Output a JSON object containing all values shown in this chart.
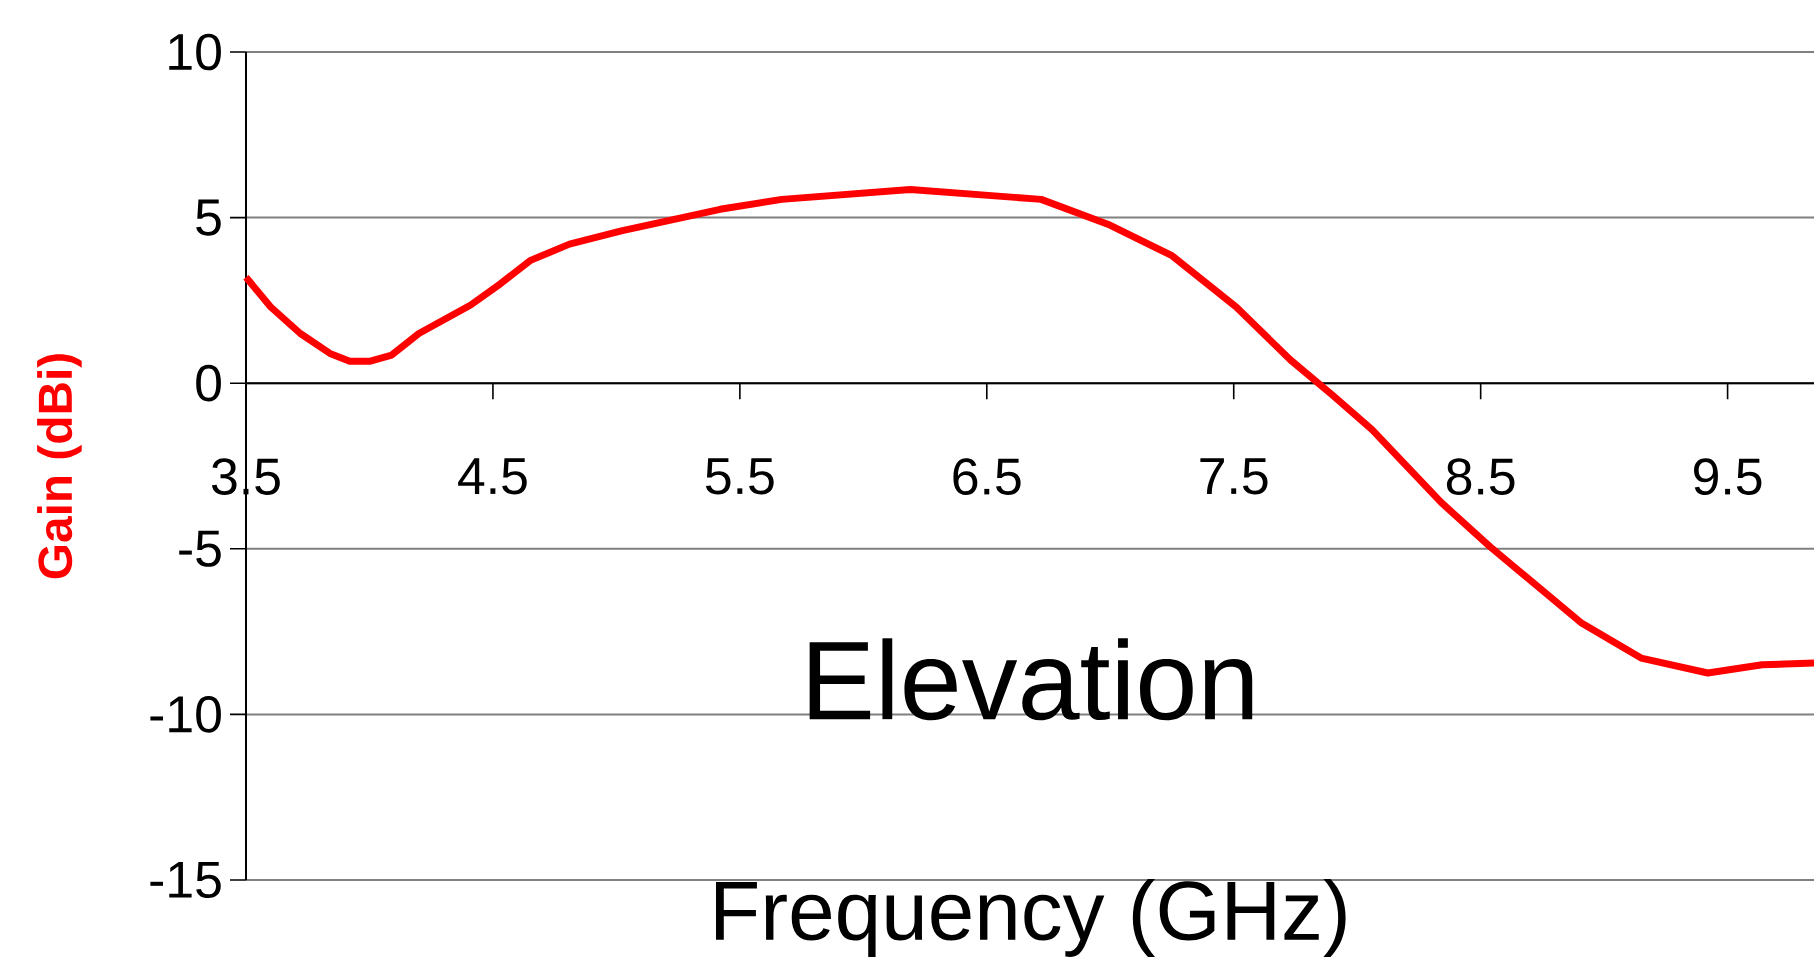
{
  "chart_data": {
    "type": "line",
    "title": "Elevation",
    "xlabel": "Frequency (GHz)",
    "ylabel": "Gain (dBi)",
    "x": [
      3.5,
      3.6,
      3.72,
      3.84,
      3.92,
      4.0,
      4.09,
      4.2,
      4.41,
      4.53,
      4.65,
      4.81,
      5.02,
      5.42,
      5.67,
      6.19,
      6.72,
      6.99,
      7.25,
      7.51,
      7.73,
      7.9,
      8.06,
      8.34,
      8.54,
      8.91,
      9.15,
      9.42,
      9.64,
      9.85
    ],
    "series": [
      {
        "color": "#ff0000",
        "values": [
          3.2,
          2.3,
          1.5,
          0.9,
          0.66,
          0.66,
          0.85,
          1.5,
          2.36,
          3.0,
          3.7,
          4.2,
          4.6,
          5.25,
          5.55,
          5.85,
          5.55,
          4.8,
          3.85,
          2.3,
          0.7,
          -0.36,
          -1.4,
          -3.6,
          -4.95,
          -7.25,
          -8.3,
          -8.75,
          -8.5,
          -8.45
        ]
      }
    ],
    "xlim": [
      3.5,
      9.85
    ],
    "ylim": [
      -15,
      10
    ],
    "xticks": [
      3.5,
      4.5,
      5.5,
      6.5,
      7.5,
      8.5,
      9.5
    ],
    "yticks": [
      -15,
      -10,
      -5,
      0,
      5,
      10
    ],
    "grid": "y",
    "marker": "none",
    "line_style": "solid"
  }
}
